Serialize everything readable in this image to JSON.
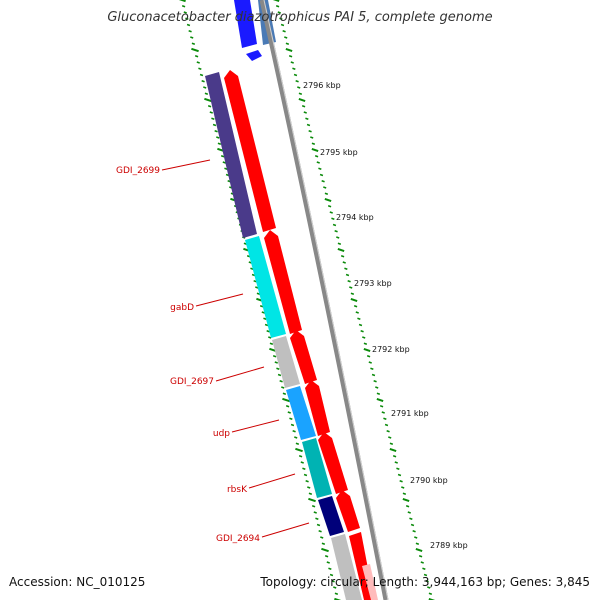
{
  "title": "Gluconacetobacter diazotrophicus PAI 5, complete genome",
  "accession": "Accession: NC_010125",
  "summary": "Topology: circular; Length: 3,944,163 bp; Genes: 3,845",
  "ruler_labels": [
    "2796 kbp",
    "2795 kbp",
    "2794 kbp",
    "2793 kbp",
    "2792 kbp",
    "2791 kbp",
    "2790 kbp",
    "2789 kbp"
  ],
  "gene_labels": [
    "GDI_2699",
    "gabD",
    "GDI_2697",
    "udp",
    "rbsK",
    "GDI_2694"
  ],
  "colors": {
    "forward_cds": "#ff0000",
    "backbone": "#888888",
    "ruler": "#0a8a0a",
    "label": "#cc0000",
    "GDI_2699": "#4a3a8a",
    "gabD": "#00e5e5",
    "GDI_2697": "#bfbfbf",
    "udp": "#1aa3ff",
    "rbsK": "#00b3b3",
    "GDI_2694": "#00007a"
  }
}
